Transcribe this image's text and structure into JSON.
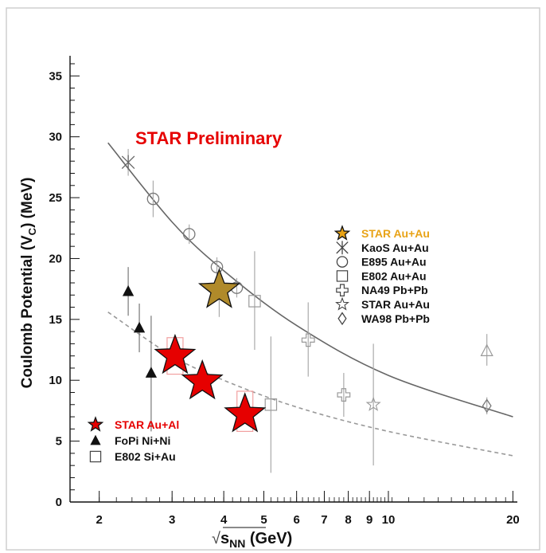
{
  "chart_data": {
    "type": "scatter",
    "x_scale": "log",
    "xlim": [
      1.7,
      20.5
    ],
    "ylim": [
      0,
      36
    ],
    "x_ticks": [
      {
        "value": 2,
        "label": "2"
      },
      {
        "value": 3,
        "label": "3"
      },
      {
        "value": 4,
        "label": "4"
      },
      {
        "value": 5,
        "label": "5"
      },
      {
        "value": 6,
        "label": "6"
      },
      {
        "value": 7,
        "label": "7"
      },
      {
        "value": 8,
        "label": "8"
      },
      {
        "value": 9,
        "label": "9"
      },
      {
        "value": 10,
        "label": "10"
      },
      {
        "value": 20,
        "label": "20"
      }
    ],
    "y_ticks": [
      {
        "value": 0,
        "label": "0"
      },
      {
        "value": 5,
        "label": "5"
      },
      {
        "value": 10,
        "label": "10"
      },
      {
        "value": 15,
        "label": "15"
      },
      {
        "value": 20,
        "label": "20"
      },
      {
        "value": 25,
        "label": "25"
      },
      {
        "value": 30,
        "label": "30"
      },
      {
        "value": 35,
        "label": "35"
      }
    ],
    "xlabel": {
      "pre": "√",
      "s": "s",
      "sub": "NN",
      "unit": " (GeV)"
    },
    "ylabel": {
      "pre": "Coulomb Potential (V",
      "sub": "C",
      "post": ") (MeV)"
    },
    "annotation": "STAR Preliminary",
    "legend_au": [
      {
        "label": "STAR Au+Au",
        "marker": "star-gold",
        "color": "#e8a317"
      },
      {
        "label": "KaoS Au+Au",
        "marker": "asterisk",
        "color": "#444444"
      },
      {
        "label": "E895 Au+Au",
        "marker": "circle",
        "color": "#444444"
      },
      {
        "label": "E802 Au+Au",
        "marker": "square",
        "color": "#444444"
      },
      {
        "label": "NA49 Pb+Pb",
        "marker": "cross",
        "color": "#444444"
      },
      {
        "label": "STAR Au+Au",
        "marker": "star",
        "color": "#444444"
      },
      {
        "label": "WA98 Pb+Pb",
        "marker": "diamond",
        "color": "#444444"
      }
    ],
    "legend_al": [
      {
        "label": "STAR Au+Al",
        "marker": "star-red",
        "color": "#e60000"
      },
      {
        "label": "FoPi Ni+Ni",
        "marker": "triangle-filled",
        "color": "#111111"
      },
      {
        "label": "E802 Si+Au",
        "marker": "square",
        "color": "#444444"
      }
    ],
    "curves": [
      {
        "style": "solid",
        "color": "#666666",
        "points": [
          [
            2.1,
            29.5
          ],
          [
            3,
            23.0
          ],
          [
            4,
            19.0
          ],
          [
            6,
            14.5
          ],
          [
            10,
            10.4
          ],
          [
            20,
            7.0
          ]
        ]
      },
      {
        "style": "dashed",
        "color": "#999999",
        "points": [
          [
            2.1,
            15.6
          ],
          [
            3,
            12.0
          ],
          [
            4,
            10.0
          ],
          [
            6,
            7.8
          ],
          [
            10,
            5.8
          ],
          [
            20,
            3.8
          ]
        ]
      }
    ],
    "series": [
      {
        "marker": "asterisk",
        "color": "#666666",
        "points": [
          {
            "x": 2.35,
            "y": 27.9,
            "lo": 26.8,
            "hi": 29.0
          }
        ]
      },
      {
        "marker": "circle",
        "color": "#777777",
        "points": [
          {
            "x": 2.7,
            "y": 24.9,
            "lo": 23.4,
            "hi": 26.4
          },
          {
            "x": 3.3,
            "y": 22.0,
            "lo": 21.2,
            "hi": 22.8
          },
          {
            "x": 3.85,
            "y": 19.3,
            "lo": 18.5,
            "hi": 20.1
          },
          {
            "x": 4.3,
            "y": 17.6,
            "lo": 16.8,
            "hi": 18.4
          }
        ]
      },
      {
        "marker": "square",
        "color": "#999999",
        "points": [
          {
            "x": 4.75,
            "y": 16.5,
            "lo": 12.5,
            "hi": 20.6
          }
        ]
      },
      {
        "marker": "square",
        "color": "#999999",
        "points": [
          {
            "x": 5.2,
            "y": 8.0,
            "lo": 2.4,
            "hi": 13.6
          }
        ]
      },
      {
        "marker": "cross",
        "color": "#999999",
        "points": [
          {
            "x": 6.4,
            "y": 13.3,
            "lo": 10.3,
            "hi": 16.4
          },
          {
            "x": 7.8,
            "y": 8.8,
            "lo": 7.0,
            "hi": 10.6
          }
        ]
      },
      {
        "marker": "star",
        "color": "#999999",
        "points": [
          {
            "x": 9.2,
            "y": 8.0,
            "lo": 3.0,
            "hi": 13.0
          }
        ]
      },
      {
        "marker": "triangle-open",
        "color": "#999999",
        "points": [
          {
            "x": 17.3,
            "y": 12.4,
            "lo": 11.2,
            "hi": 13.8
          }
        ]
      },
      {
        "marker": "diamond",
        "color": "#777777",
        "points": [
          {
            "x": 17.3,
            "y": 7.9,
            "lo": 7.2,
            "hi": 8.6
          }
        ]
      },
      {
        "marker": "triangle-filled",
        "color": "#111111",
        "points": [
          {
            "x": 2.35,
            "y": 17.3,
            "lo": 15.3,
            "hi": 19.3
          },
          {
            "x": 2.5,
            "y": 14.3,
            "lo": 12.3,
            "hi": 16.3
          },
          {
            "x": 2.67,
            "y": 10.6,
            "lo": 5.8,
            "hi": 15.3
          }
        ]
      },
      {
        "marker": "star-gold",
        "color": "#b08a2a",
        "points": [
          {
            "x": 3.9,
            "y": 17.4,
            "lo": 15.2,
            "hi": 19.4
          }
        ]
      },
      {
        "marker": "star-red",
        "color": "#e60000",
        "points": [
          {
            "x": 3.05,
            "y": 12.0,
            "box": [
              10.5,
              13.5
            ]
          },
          {
            "x": 3.55,
            "y": 9.9,
            "box": null
          },
          {
            "x": 4.5,
            "y": 7.2,
            "box": [
              5.8,
              9.1
            ]
          }
        ]
      }
    ]
  }
}
